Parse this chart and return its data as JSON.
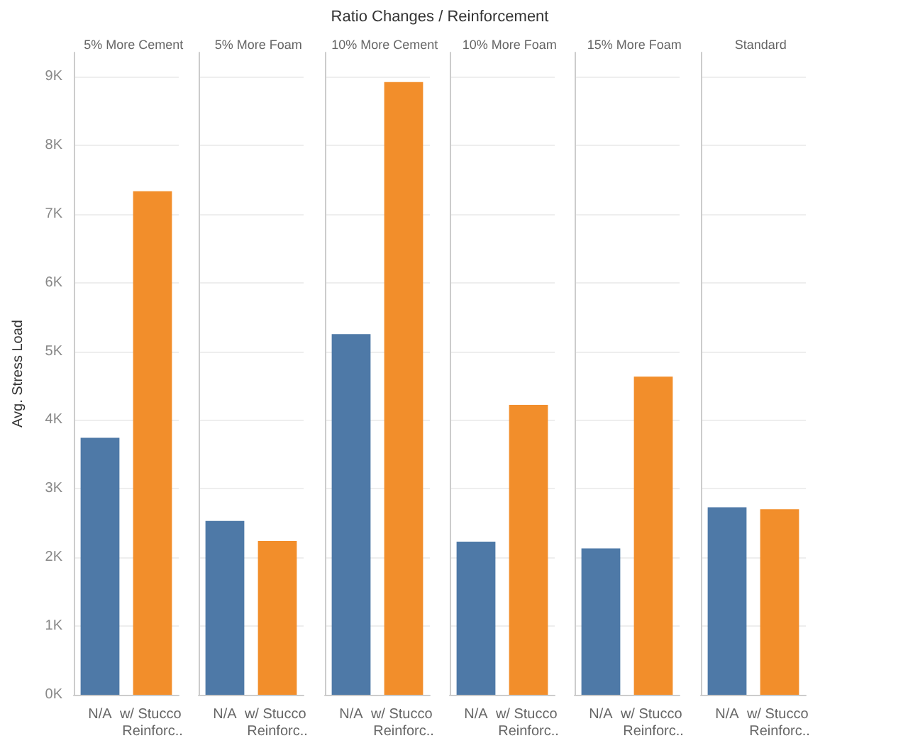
{
  "chart_data": [
    {
      "type": "bar",
      "title": "5% More Cement",
      "annotations": [
        "Ratio Changes / Reinforcement"
      ],
      "ylabel": "Avg. Stress Load",
      "categories": [
        "N/A",
        "w/ Stucco Reinforc.."
      ],
      "values": [
        3740,
        7330
      ],
      "colors": [
        "#4e79a7",
        "#f28e2b"
      ],
      "ylim": [
        0,
        9350
      ],
      "yticks": [
        {
          "value": 0,
          "label": "0K"
        },
        {
          "value": 1000,
          "label": "1K"
        },
        {
          "value": 2000,
          "label": "2K"
        },
        {
          "value": 3000,
          "label": "3K"
        },
        {
          "value": 4000,
          "label": "4K"
        },
        {
          "value": 5000,
          "label": "5K"
        },
        {
          "value": 6000,
          "label": "6K"
        },
        {
          "value": 7000,
          "label": "7K"
        },
        {
          "value": 8000,
          "label": "8K"
        },
        {
          "value": 9000,
          "label": "9K"
        }
      ],
      "grid": "y"
    },
    {
      "type": "bar",
      "title": "5% More Foam",
      "categories": [
        "N/A",
        "w/ Stucco Reinforc.."
      ],
      "values": [
        2530,
        2240
      ],
      "colors": [
        "#4e79a7",
        "#f28e2b"
      ],
      "ylim": [
        0,
        9350
      ],
      "yticks": [
        0,
        1000,
        2000,
        3000,
        4000,
        5000,
        6000,
        7000,
        8000,
        9000
      ],
      "tick_labels": "x",
      "grid": "y"
    },
    {
      "type": "bar",
      "title": "10% More Cement",
      "categories": [
        "N/A",
        "w/ Stucco Reinforc.."
      ],
      "values": [
        5250,
        8920
      ],
      "colors": [
        "#4e79a7",
        "#f28e2b"
      ],
      "ylim": [
        0,
        9350
      ],
      "yticks": [
        0,
        1000,
        2000,
        3000,
        4000,
        5000,
        6000,
        7000,
        8000,
        9000
      ],
      "tick_labels": "x",
      "grid": "y"
    },
    {
      "type": "bar",
      "title": "10% More Foam",
      "categories": [
        "N/A",
        "w/ Stucco Reinforc.."
      ],
      "values": [
        2230,
        4220
      ],
      "colors": [
        "#4e79a7",
        "#f28e2b"
      ],
      "ylim": [
        0,
        9350
      ],
      "yticks": [
        0,
        1000,
        2000,
        3000,
        4000,
        5000,
        6000,
        7000,
        8000,
        9000
      ],
      "tick_labels": "x",
      "grid": "y"
    },
    {
      "type": "bar",
      "title": "15% More Foam",
      "categories": [
        "N/A",
        "w/ Stucco Reinforc.."
      ],
      "values": [
        2130,
        4630
      ],
      "colors": [
        "#4e79a7",
        "#f28e2b"
      ],
      "ylim": [
        0,
        9350
      ],
      "yticks": [
        0,
        1000,
        2000,
        3000,
        4000,
        5000,
        6000,
        7000,
        8000,
        9000
      ],
      "tick_labels": "x",
      "grid": "y"
    },
    {
      "type": "bar",
      "title": "Standard",
      "categories": [
        "N/A",
        "w/ Stucco Reinforc.."
      ],
      "values": [
        2730,
        2700
      ],
      "colors": [
        "#4e79a7",
        "#f28e2b"
      ],
      "ylim": [
        0,
        9350
      ],
      "yticks": [
        0,
        1000,
        2000,
        3000,
        4000,
        5000,
        6000,
        7000,
        8000,
        9000
      ],
      "tick_labels": "x",
      "grid": "y"
    }
  ]
}
